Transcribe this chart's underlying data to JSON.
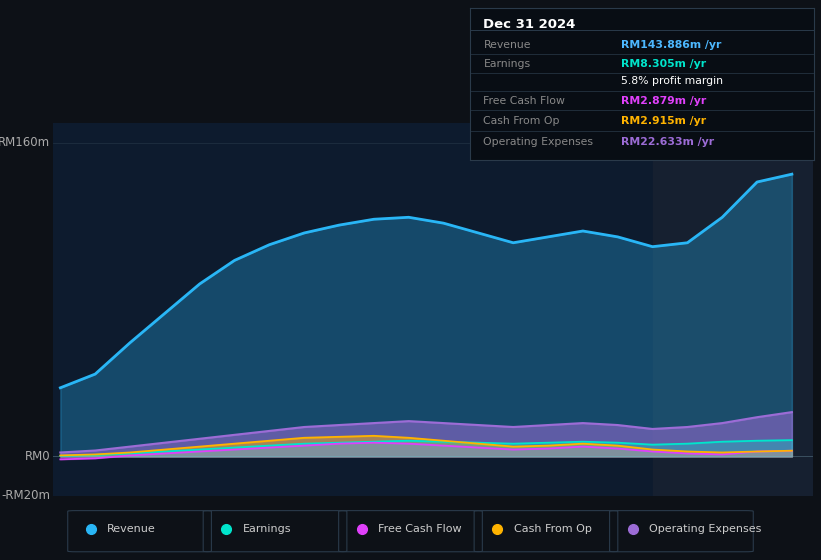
{
  "bg_color": "#0d1117",
  "chart_bg": "#0d1b2e",
  "title": "Dec 31 2024",
  "info_box_rows": [
    {
      "label": "Revenue",
      "value": "RM143.886m /yr",
      "value_color": "#4db8ff",
      "bold_value": true
    },
    {
      "label": "Earnings",
      "value": "RM8.305m /yr",
      "value_color": "#00e5cc",
      "bold_value": true
    },
    {
      "label": "",
      "value": "5.8% profit margin",
      "value_color": "#ffffff",
      "bold_value": false
    },
    {
      "label": "Free Cash Flow",
      "value": "RM2.879m /yr",
      "value_color": "#e040fb",
      "bold_value": true
    },
    {
      "label": "Cash From Op",
      "value": "RM2.915m /yr",
      "value_color": "#ffb300",
      "bold_value": true
    },
    {
      "label": "Operating Expenses",
      "value": "RM22.633m /yr",
      "value_color": "#9c6cd6",
      "bold_value": true
    }
  ],
  "ylim": [
    -20,
    170
  ],
  "ytick_vals": [
    -20,
    0,
    160
  ],
  "ytick_labels": [
    "-RM20m",
    "RM0",
    "RM160m"
  ],
  "xlim": [
    2019.7,
    2025.15
  ],
  "xticks": [
    2020,
    2021,
    2022,
    2023,
    2024
  ],
  "vline_x": 2024.0,
  "series": {
    "x": [
      2019.75,
      2020.0,
      2020.25,
      2020.5,
      2020.75,
      2021.0,
      2021.25,
      2021.5,
      2021.75,
      2022.0,
      2022.25,
      2022.5,
      2022.75,
      2023.0,
      2023.25,
      2023.5,
      2023.75,
      2024.0,
      2024.25,
      2024.5,
      2024.75,
      2025.0
    ],
    "revenue": [
      35,
      42,
      58,
      73,
      88,
      100,
      108,
      114,
      118,
      121,
      122,
      119,
      114,
      109,
      112,
      115,
      112,
      107,
      109,
      122,
      140,
      144
    ],
    "earnings": [
      0.3,
      0.8,
      1.5,
      2.5,
      3.5,
      4.5,
      5.5,
      6.5,
      7.0,
      7.5,
      8.0,
      7.5,
      7.0,
      6.5,
      7.0,
      7.5,
      7.0,
      6.0,
      6.5,
      7.5,
      8.0,
      8.3
    ],
    "fcf": [
      -1.5,
      -1.0,
      0.5,
      1.5,
      2.5,
      3.5,
      4.5,
      5.5,
      6.5,
      7.0,
      6.5,
      5.5,
      4.5,
      3.5,
      4.0,
      5.0,
      4.0,
      2.5,
      1.5,
      1.0,
      2.5,
      2.88
    ],
    "cashfromop": [
      0.5,
      1.0,
      2.0,
      3.5,
      5.0,
      6.5,
      8.0,
      9.5,
      10.0,
      10.5,
      9.5,
      8.0,
      6.5,
      5.0,
      5.5,
      6.5,
      5.5,
      3.5,
      2.5,
      2.0,
      2.5,
      2.9
    ],
    "opex": [
      2,
      3,
      5,
      7,
      9,
      11,
      13,
      15,
      16,
      17,
      18,
      17,
      16,
      15,
      16,
      17,
      16,
      14,
      15,
      17,
      20,
      22.6
    ]
  },
  "colors": {
    "revenue": "#29b6f6",
    "earnings": "#00e5cc",
    "fcf": "#e040fb",
    "cashfromop": "#ffb300",
    "opex": "#9c6cd6"
  },
  "legend": [
    {
      "label": "Revenue",
      "color": "#29b6f6"
    },
    {
      "label": "Earnings",
      "color": "#00e5cc"
    },
    {
      "label": "Free Cash Flow",
      "color": "#e040fb"
    },
    {
      "label": "Cash From Op",
      "color": "#ffb300"
    },
    {
      "label": "Operating Expenses",
      "color": "#9c6cd6"
    }
  ]
}
